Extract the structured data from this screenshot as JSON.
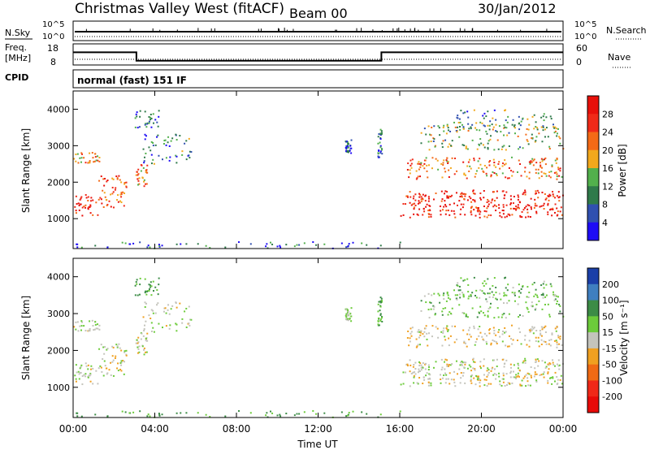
{
  "header": {
    "title": "Christmas Valley West (fitACF)",
    "beam": "Beam 00",
    "date": "30/Jan/2012"
  },
  "status_strip": {
    "nsky_label": "N.Sky",
    "nsearch_label": "N.Search",
    "nsky_ticks": [
      "10^5",
      "10^0"
    ],
    "nsearch_ticks": [
      "10^5",
      "10^0"
    ],
    "freq_label_line1": "Freq.",
    "freq_label_line2": "[MHz]",
    "freq_ticks": [
      "18",
      "8"
    ],
    "nave_label": "Nave",
    "nave_ticks": [
      "60",
      "0"
    ],
    "cpid_label": "CPID",
    "cpid_text": "normal (fast) 151 IF",
    "freq_steps": [
      {
        "t": 0,
        "v": 14
      },
      {
        "t": 3.1,
        "v": 10
      },
      {
        "t": 15.1,
        "v": 14
      },
      {
        "t": 24,
        "v": 14
      }
    ],
    "freq_range": [
      8,
      18
    ]
  },
  "power_panel": {
    "ylabel": "Slant Range [km]",
    "yticks": [
      "1000",
      "2000",
      "3000",
      "4000"
    ],
    "colorbar_label": "Power [dB]",
    "colorbar_ticks": [
      "4",
      "8",
      "12",
      "16",
      "20",
      "24",
      "28"
    ],
    "colors": [
      "#1e0cf5",
      "#3050b0",
      "#2f7a4a",
      "#52b04c",
      "#f2a81c",
      "#f46a16",
      "#f02a18",
      "#e8100a"
    ]
  },
  "velocity_panel": {
    "ylabel": "Slant Range [km]",
    "yticks": [
      "1000",
      "2000",
      "3000",
      "4000"
    ],
    "colorbar_label": "Velocity [m s⁻¹]",
    "colorbar_ticks": [
      "200",
      "100",
      "50",
      "15",
      "-15",
      "-50",
      "-100",
      "-200"
    ],
    "colors": [
      "#1b3fa8",
      "#3f7fc0",
      "#3c8c46",
      "#6ccb3a",
      "#c4c4bc",
      "#f0a020",
      "#f06a14",
      "#f02818",
      "#e80a08"
    ]
  },
  "time_axis": {
    "xlabel": "Time UT",
    "ticks": [
      "00:00",
      "04:00",
      "08:00",
      "12:00",
      "16:00",
      "20:00",
      "00:00"
    ]
  },
  "chart_data": {
    "type": "heatmap",
    "x_range_hours": [
      0,
      24
    ],
    "y_range_km": [
      180,
      4500
    ],
    "power_scale_db": [
      0,
      32
    ],
    "velocity_scale_ms": [
      -250,
      250
    ],
    "scatter_regions": [
      {
        "t0": 0.0,
        "t1": 1.2,
        "r0": 1100,
        "r1": 1700,
        "level": 0.9,
        "vel": 0
      },
      {
        "t0": 1.2,
        "t1": 2.6,
        "r0": 1300,
        "r1": 2200,
        "level": 0.75,
        "vel": 0
      },
      {
        "t0": 0.0,
        "t1": 1.3,
        "r0": 2550,
        "r1": 2850,
        "level": 0.6,
        "vel": 0
      },
      {
        "t0": 3.0,
        "t1": 3.6,
        "r0": 1900,
        "r1": 2500,
        "level": 0.65,
        "vel": 0
      },
      {
        "t0": 3.4,
        "t1": 5.8,
        "r0": 2500,
        "r1": 3400,
        "level": 0.3,
        "vel": 10
      },
      {
        "t0": 3.0,
        "t1": 4.2,
        "r0": 3500,
        "r1": 4000,
        "level": 0.25,
        "vel": 50
      },
      {
        "t0": 16.0,
        "t1": 24.0,
        "r0": 1050,
        "r1": 1800,
        "level": 0.92,
        "vel": 0
      },
      {
        "t0": 16.3,
        "t1": 24.0,
        "r0": 2100,
        "r1": 2700,
        "level": 0.65,
        "vel": -10
      },
      {
        "t0": 17.0,
        "t1": 24.0,
        "r0": 2900,
        "r1": 3600,
        "level": 0.45,
        "vel": 30
      },
      {
        "t0": 18.5,
        "t1": 23.5,
        "r0": 3500,
        "r1": 4000,
        "level": 0.35,
        "vel": 40
      },
      {
        "t0": 13.3,
        "t1": 13.6,
        "r0": 2800,
        "r1": 3200,
        "level": 0.25,
        "vel": 20
      },
      {
        "t0": 14.9,
        "t1": 15.1,
        "r0": 2700,
        "r1": 3500,
        "level": 0.25,
        "vel": 60
      },
      {
        "t0": 0.0,
        "t1": 16.0,
        "r0": 200,
        "r1": 380,
        "level": 0.2,
        "vel": 60
      }
    ]
  }
}
